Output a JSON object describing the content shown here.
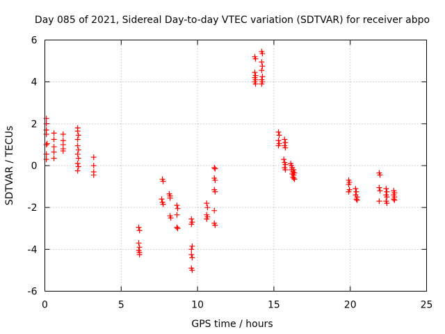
{
  "chart_data": {
    "type": "scatter",
    "title": "Day 085 of 2021, Sidereal Day-to-day VTEC variation (SDTVAR) for receiver abpo",
    "xlabel": "GPS time / hours",
    "ylabel": "SDTVAR / TECUs",
    "xlim": [
      0,
      25
    ],
    "ylim": [
      -6,
      6
    ],
    "xticks": [
      0,
      5,
      10,
      15,
      20,
      25
    ],
    "yticks": [
      -6,
      -4,
      -2,
      0,
      2,
      4,
      6
    ],
    "xtick_labels": [
      "0",
      "5",
      "10",
      "15",
      "20",
      "25"
    ],
    "ytick_labels": [
      "-6",
      "-4",
      "-2",
      "0",
      "2",
      "4",
      "6"
    ],
    "grid": true,
    "marker": "plus",
    "series": [
      {
        "name": "SDTVAR",
        "color": "#ff0000",
        "points": [
          [
            0.1,
            2.25
          ],
          [
            0.1,
            2.0
          ],
          [
            0.1,
            1.7
          ],
          [
            0.1,
            1.5
          ],
          [
            0.1,
            1.0
          ],
          [
            0.1,
            0.55
          ],
          [
            0.1,
            0.3
          ],
          [
            0.15,
            1.05
          ],
          [
            0.6,
            1.55
          ],
          [
            0.6,
            1.25
          ],
          [
            0.6,
            0.9
          ],
          [
            0.6,
            0.65
          ],
          [
            0.6,
            0.35
          ],
          [
            1.2,
            1.5
          ],
          [
            1.2,
            1.2
          ],
          [
            1.2,
            1.0
          ],
          [
            1.2,
            0.8
          ],
          [
            1.2,
            0.7
          ],
          [
            2.15,
            1.8
          ],
          [
            2.15,
            1.65
          ],
          [
            2.2,
            1.45
          ],
          [
            2.15,
            1.25
          ],
          [
            2.15,
            0.95
          ],
          [
            2.2,
            0.75
          ],
          [
            2.15,
            0.55
          ],
          [
            2.2,
            0.35
          ],
          [
            2.15,
            0.1
          ],
          [
            2.2,
            -0.05
          ],
          [
            2.15,
            -0.25
          ],
          [
            3.2,
            0.4
          ],
          [
            3.2,
            0.0
          ],
          [
            3.2,
            -0.3
          ],
          [
            3.2,
            -0.45
          ],
          [
            6.15,
            -2.95
          ],
          [
            6.2,
            -3.1
          ],
          [
            6.15,
            -3.7
          ],
          [
            6.2,
            -3.9
          ],
          [
            6.15,
            -4.05
          ],
          [
            6.2,
            -4.15
          ],
          [
            6.2,
            -4.25
          ],
          [
            7.7,
            -0.65
          ],
          [
            7.75,
            -0.75
          ],
          [
            7.65,
            -1.6
          ],
          [
            7.7,
            -1.75
          ],
          [
            7.75,
            -1.85
          ],
          [
            8.15,
            -1.35
          ],
          [
            8.2,
            -1.45
          ],
          [
            8.2,
            -1.55
          ],
          [
            8.2,
            -2.4
          ],
          [
            8.25,
            -2.5
          ],
          [
            8.65,
            -1.9
          ],
          [
            8.7,
            -2.05
          ],
          [
            8.65,
            -2.35
          ],
          [
            8.65,
            -2.95
          ],
          [
            8.7,
            -3.0
          ],
          [
            9.6,
            -2.55
          ],
          [
            9.65,
            -2.7
          ],
          [
            9.6,
            -2.8
          ],
          [
            9.65,
            -3.85
          ],
          [
            9.6,
            -4.0
          ],
          [
            9.6,
            -4.25
          ],
          [
            9.65,
            -4.4
          ],
          [
            9.6,
            -4.9
          ],
          [
            9.65,
            -5.0
          ],
          [
            10.6,
            -1.8
          ],
          [
            10.65,
            -2.0
          ],
          [
            10.6,
            -2.35
          ],
          [
            10.65,
            -2.45
          ],
          [
            10.6,
            -2.55
          ],
          [
            11.1,
            -0.1
          ],
          [
            11.15,
            -0.15
          ],
          [
            11.1,
            -0.6
          ],
          [
            11.15,
            -0.7
          ],
          [
            11.1,
            -1.15
          ],
          [
            11.15,
            -1.25
          ],
          [
            11.1,
            -2.15
          ],
          [
            11.1,
            -2.75
          ],
          [
            11.15,
            -2.85
          ],
          [
            13.75,
            5.2
          ],
          [
            13.8,
            5.1
          ],
          [
            13.75,
            4.45
          ],
          [
            13.8,
            4.3
          ],
          [
            13.75,
            4.2
          ],
          [
            13.8,
            4.1
          ],
          [
            13.75,
            4.0
          ],
          [
            13.8,
            3.9
          ],
          [
            14.2,
            5.45
          ],
          [
            14.25,
            5.35
          ],
          [
            14.2,
            4.95
          ],
          [
            14.25,
            4.75
          ],
          [
            14.2,
            4.55
          ],
          [
            14.25,
            4.25
          ],
          [
            14.2,
            4.1
          ],
          [
            14.25,
            4.0
          ],
          [
            14.2,
            3.9
          ],
          [
            15.3,
            1.6
          ],
          [
            15.35,
            1.45
          ],
          [
            15.3,
            1.2
          ],
          [
            15.35,
            1.05
          ],
          [
            15.3,
            0.95
          ],
          [
            15.7,
            1.25
          ],
          [
            15.75,
            1.1
          ],
          [
            15.7,
            0.95
          ],
          [
            15.75,
            0.85
          ],
          [
            15.65,
            0.3
          ],
          [
            15.7,
            0.15
          ],
          [
            15.75,
            0.05
          ],
          [
            15.7,
            -0.1
          ],
          [
            15.75,
            -0.2
          ],
          [
            16.1,
            0.1
          ],
          [
            16.15,
            0.0
          ],
          [
            16.2,
            -0.1
          ],
          [
            16.15,
            -0.2
          ],
          [
            16.25,
            -0.3
          ],
          [
            16.2,
            -0.4
          ],
          [
            16.3,
            -0.45
          ],
          [
            16.25,
            -0.55
          ],
          [
            16.3,
            -0.6
          ],
          [
            16.35,
            -0.65
          ],
          [
            16.3,
            -0.2
          ],
          [
            16.35,
            -0.35
          ],
          [
            19.9,
            -0.7
          ],
          [
            19.95,
            -0.8
          ],
          [
            19.9,
            -0.9
          ],
          [
            19.95,
            -1.15
          ],
          [
            19.9,
            -1.25
          ],
          [
            20.35,
            -1.1
          ],
          [
            20.4,
            -1.25
          ],
          [
            20.35,
            -1.4
          ],
          [
            20.45,
            -1.5
          ],
          [
            20.4,
            -1.6
          ],
          [
            20.45,
            -1.65
          ],
          [
            21.9,
            -0.35
          ],
          [
            21.95,
            -0.45
          ],
          [
            21.9,
            -1.05
          ],
          [
            21.95,
            -1.2
          ],
          [
            21.9,
            -1.7
          ],
          [
            22.35,
            -1.1
          ],
          [
            22.4,
            -1.25
          ],
          [
            22.35,
            -1.4
          ],
          [
            22.4,
            -1.5
          ],
          [
            22.35,
            -1.7
          ],
          [
            22.4,
            -1.8
          ],
          [
            22.85,
            -1.2
          ],
          [
            22.9,
            -1.3
          ],
          [
            22.85,
            -1.4
          ],
          [
            22.9,
            -1.5
          ],
          [
            22.85,
            -1.6
          ],
          [
            22.9,
            -1.65
          ]
        ]
      }
    ]
  }
}
